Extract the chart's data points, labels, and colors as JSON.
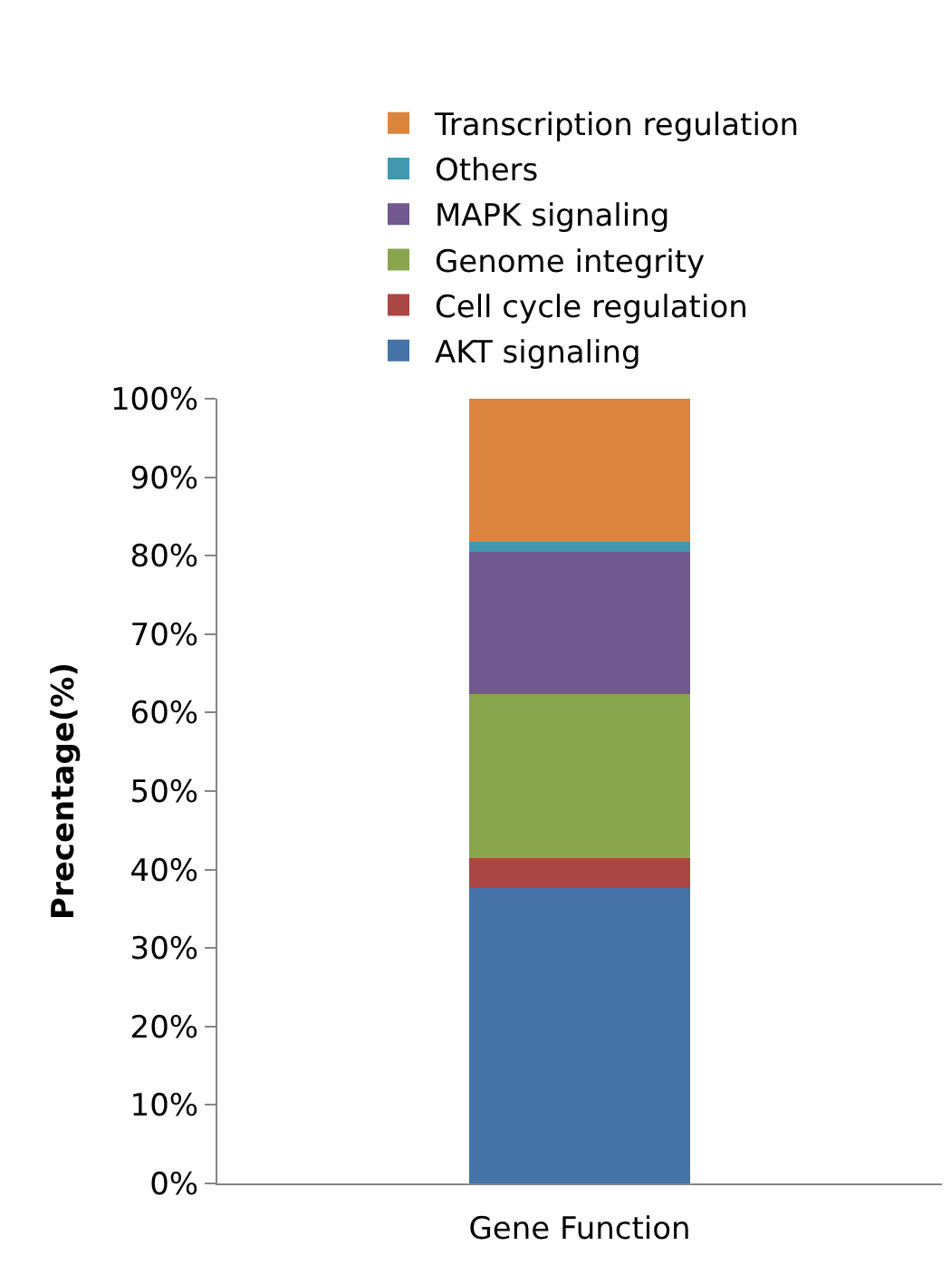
{
  "chart_data": {
    "type": "bar",
    "stacked": true,
    "xlabel": "Gene Function",
    "ylabel": "Precentage(%)",
    "categories": [
      null
    ],
    "series": [
      {
        "name": "AKT signaling",
        "color": "#4572a7",
        "values": [
          37.7
        ]
      },
      {
        "name": "Cell cycle regulation",
        "color": "#aa4643",
        "values": [
          3.8
        ]
      },
      {
        "name": "Genome integrity",
        "color": "#89a54e",
        "values": [
          20.9
        ]
      },
      {
        "name": "MAPK signaling",
        "color": "#71588f",
        "values": [
          18.1
        ]
      },
      {
        "name": "Others",
        "color": "#4198af",
        "values": [
          1.2
        ]
      },
      {
        "name": "Transcription regulation",
        "color": "#db843d",
        "values": [
          18.3
        ]
      }
    ],
    "ylim": [
      0,
      100
    ],
    "yticks": [
      {
        "value": 0,
        "label": "0%"
      },
      {
        "value": 10,
        "label": "10%"
      },
      {
        "value": 20,
        "label": "20%"
      },
      {
        "value": 30,
        "label": "30%"
      },
      {
        "value": 40,
        "label": "40%"
      },
      {
        "value": 50,
        "label": "50%"
      },
      {
        "value": 60,
        "label": "60%"
      },
      {
        "value": 70,
        "label": "70%"
      },
      {
        "value": 80,
        "label": "80%"
      },
      {
        "value": 90,
        "label": "90%"
      },
      {
        "value": 100,
        "label": "100%"
      }
    ],
    "legend": "top"
  }
}
